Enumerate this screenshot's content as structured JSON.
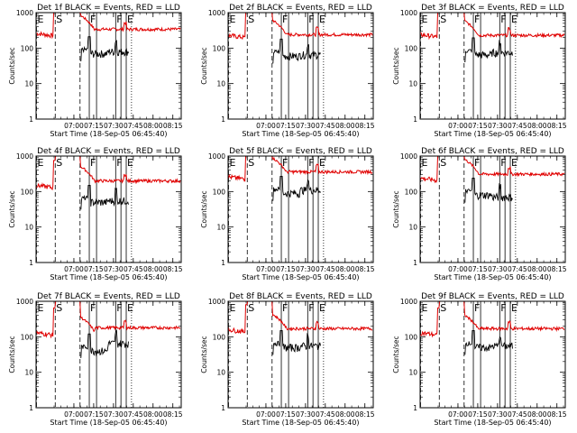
{
  "colors": {
    "events": "#000000",
    "lld": "#e00000",
    "background": "#ffffff"
  },
  "chart_data": {
    "type": "line",
    "layout": "3x3 grid",
    "yscale": "log",
    "ylim": [
      1,
      1000
    ],
    "ylabel": "Counts/sec",
    "yticks": [
      "1",
      "10",
      "100",
      "1000"
    ],
    "xlabel": "Start Time (18-Sep-05 06:45:40)",
    "xticks": [
      "07:00",
      "07:15",
      "07:30",
      "07:45",
      "08:00",
      "08:15"
    ],
    "xlim_minutes": [
      -14.33,
      95.67
    ],
    "markers": [
      {
        "label": "E",
        "t": -14.0,
        "style": "dashed"
      },
      {
        "label": "S",
        "t": 0.2,
        "style": "dashed"
      },
      {
        "label": "",
        "t": 19.0,
        "style": "dashed"
      },
      {
        "label": "F",
        "t": 26.0,
        "style": "solid"
      },
      {
        "label": "",
        "t": 31.5,
        "style": "solid"
      },
      {
        "label": "F",
        "t": 46.0,
        "style": "solid"
      },
      {
        "label": "",
        "t": 50.0,
        "style": "solid"
      },
      {
        "label": "E",
        "t": 54.0,
        "style": "solid"
      },
      {
        "label": "",
        "t": 58.0,
        "style": "dotted"
      }
    ],
    "panels": [
      {
        "title": "Det 1f BLACK = Events, RED = LLD",
        "lld_pre": 260,
        "lld_mid": 330,
        "lld_post": 340,
        "ev_mid": 70,
        "ev_post": 80
      },
      {
        "title": "Det 2f BLACK = Events, RED = LLD",
        "lld_pre": 230,
        "lld_mid": 240,
        "lld_post": 240,
        "ev_mid": 60,
        "ev_post": 65
      },
      {
        "title": "Det 3f BLACK = Events, RED = LLD",
        "lld_pre": 240,
        "lld_mid": 230,
        "lld_post": 230,
        "ev_mid": 65,
        "ev_post": 75
      },
      {
        "title": "Det 4f BLACK = Events, RED = LLD",
        "lld_pre": 150,
        "lld_mid": 200,
        "lld_post": 200,
        "ev_mid": 50,
        "ev_post": 55
      },
      {
        "title": "Det 5f BLACK = Events, RED = LLD",
        "lld_pre": 260,
        "lld_mid": 350,
        "lld_post": 360,
        "ev_mid": 90,
        "ev_post": 110
      },
      {
        "title": "Det 6f BLACK = Events, RED = LLD",
        "lld_pre": 240,
        "lld_mid": 320,
        "lld_post": 310,
        "ev_mid": 80,
        "ev_post": 70
      },
      {
        "title": "Det 7f BLACK = Events, RED = LLD",
        "lld_pre": 130,
        "lld_mid": 140,
        "lld_post": 180,
        "ev_mid": 40,
        "ev_post": 65
      },
      {
        "title": "Det 8f BLACK = Events, RED = LLD",
        "lld_pre": 160,
        "lld_mid": 170,
        "lld_post": 170,
        "ev_mid": 50,
        "ev_post": 55
      },
      {
        "title": "Det 9f BLACK = Events, RED = LLD",
        "lld_pre": 130,
        "lld_mid": 160,
        "lld_post": 170,
        "ev_mid": 50,
        "ev_post": 55
      }
    ]
  }
}
